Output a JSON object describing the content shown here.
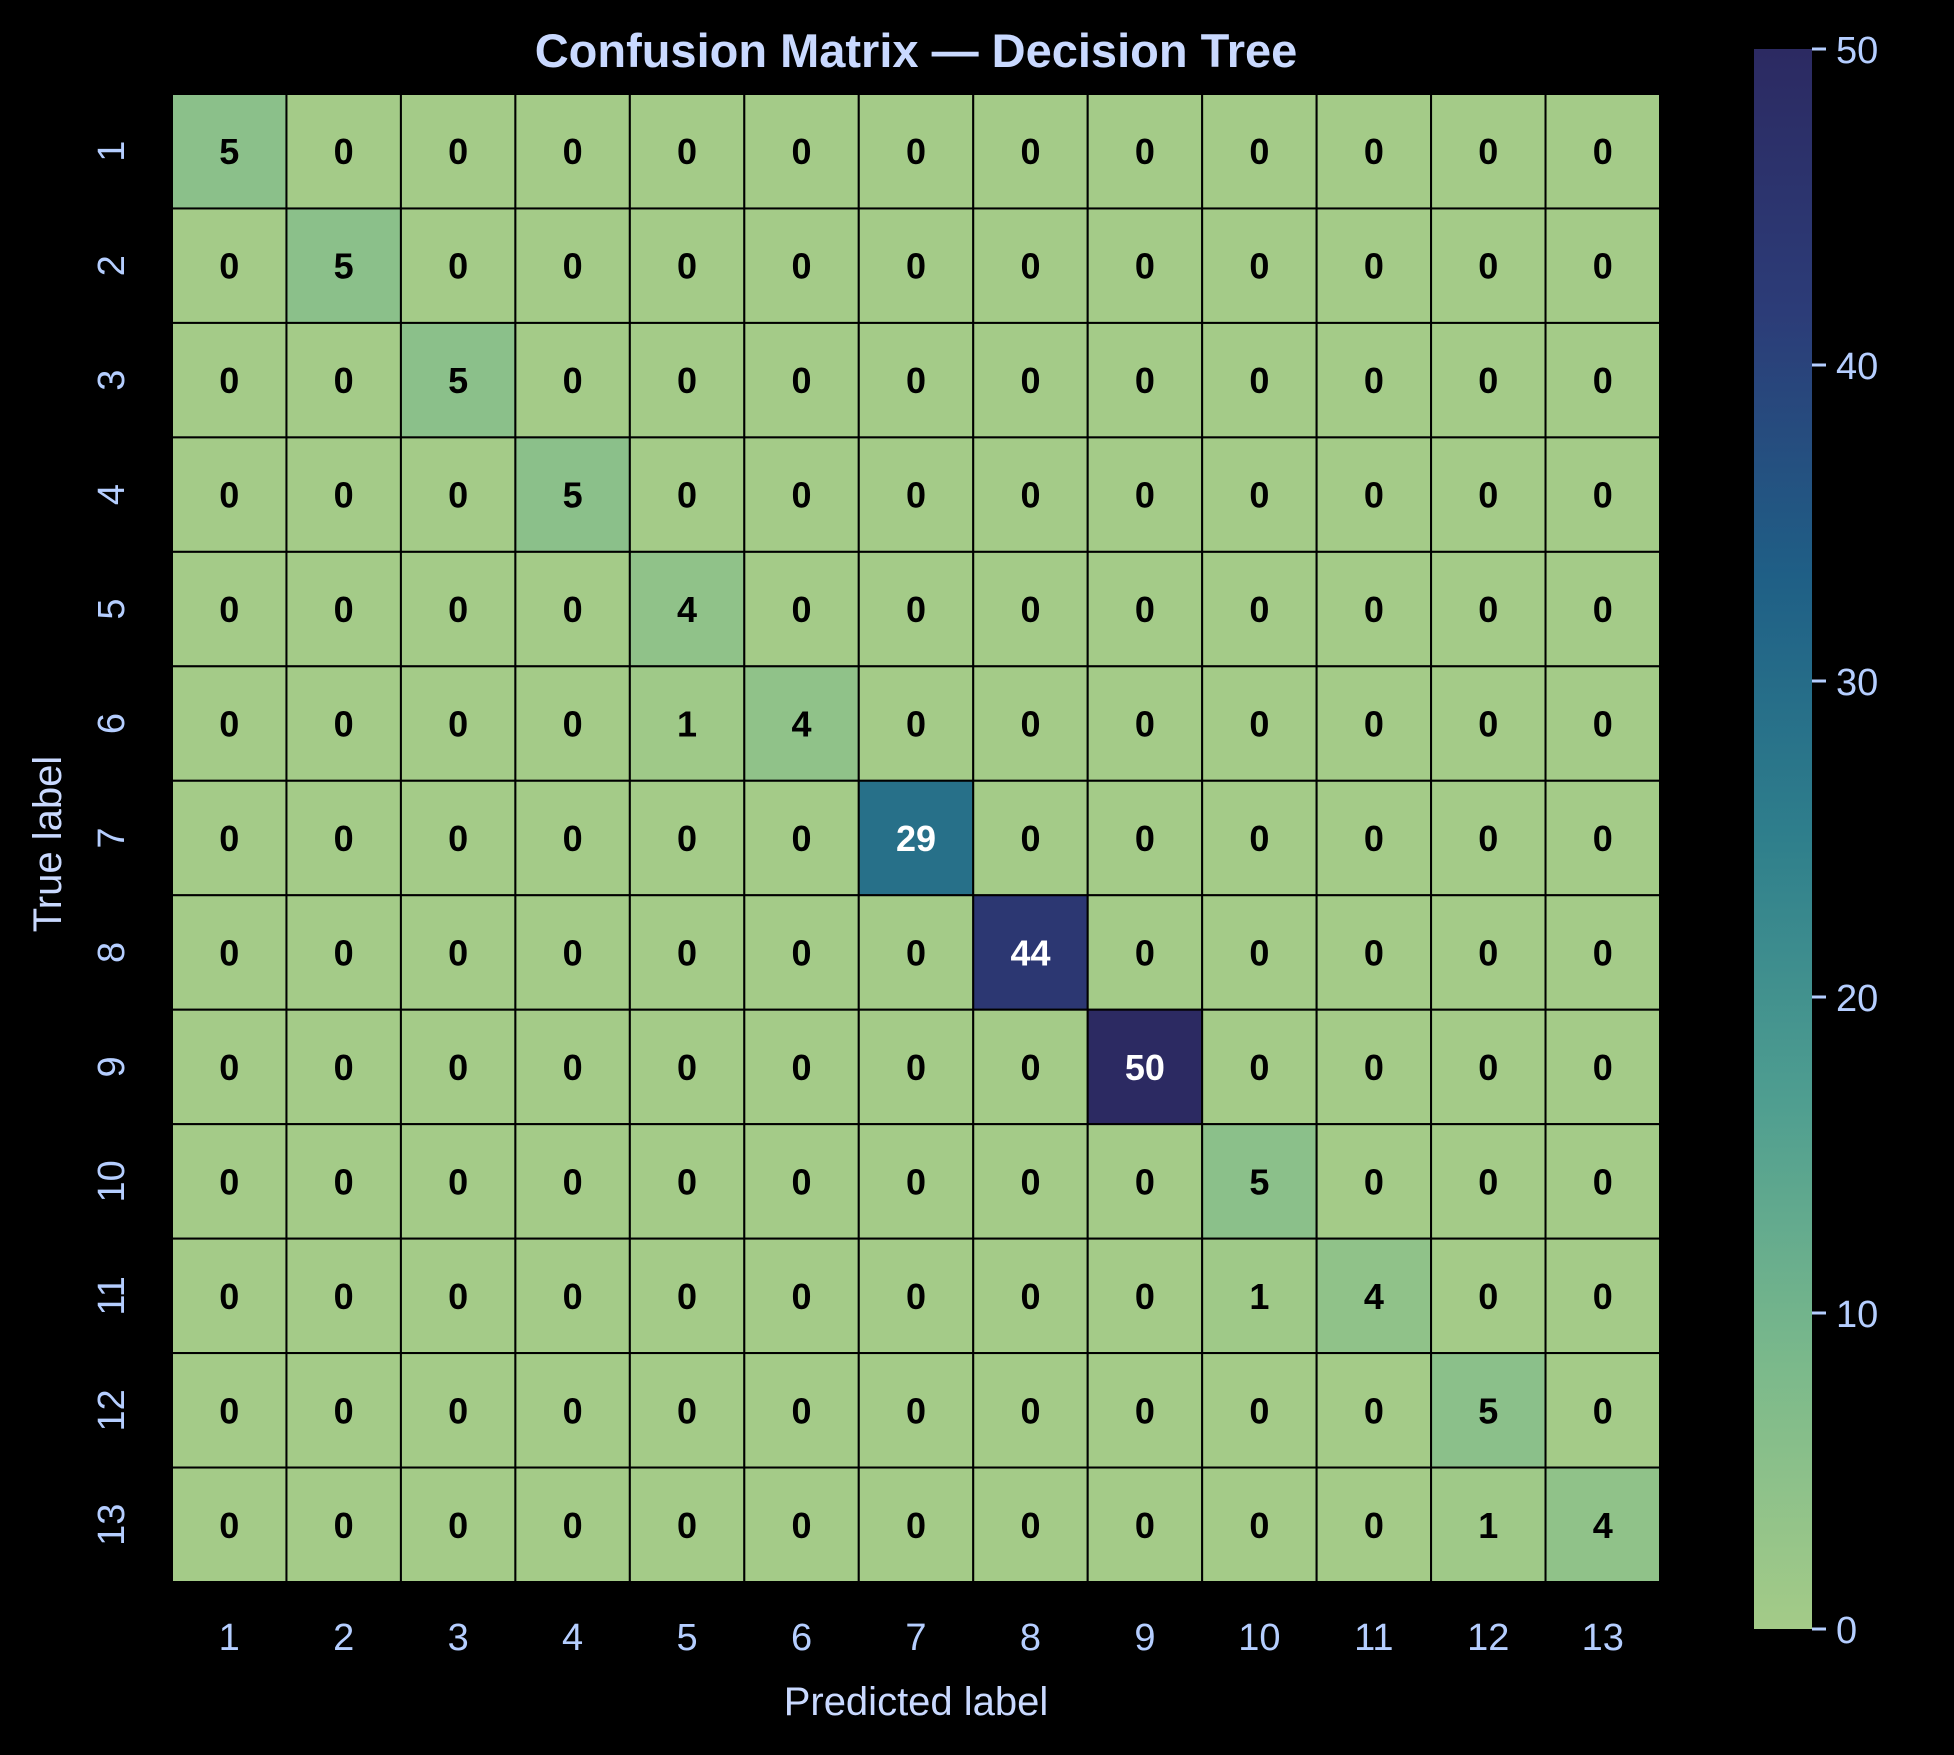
{
  "chart_data": {
    "type": "heatmap",
    "title": "Confusion Matrix — Decision Tree",
    "xlabel": "Predicted label",
    "ylabel": "True label",
    "x_categories": [
      "1",
      "2",
      "3",
      "4",
      "5",
      "6",
      "7",
      "8",
      "9",
      "10",
      "11",
      "12",
      "13"
    ],
    "y_categories": [
      "1",
      "2",
      "3",
      "4",
      "5",
      "6",
      "7",
      "8",
      "9",
      "10",
      "11",
      "12",
      "13"
    ],
    "values": [
      [
        5,
        0,
        0,
        0,
        0,
        0,
        0,
        0,
        0,
        0,
        0,
        0,
        0
      ],
      [
        0,
        5,
        0,
        0,
        0,
        0,
        0,
        0,
        0,
        0,
        0,
        0,
        0
      ],
      [
        0,
        0,
        5,
        0,
        0,
        0,
        0,
        0,
        0,
        0,
        0,
        0,
        0
      ],
      [
        0,
        0,
        0,
        5,
        0,
        0,
        0,
        0,
        0,
        0,
        0,
        0,
        0
      ],
      [
        0,
        0,
        0,
        0,
        4,
        0,
        0,
        0,
        0,
        0,
        0,
        0,
        0
      ],
      [
        0,
        0,
        0,
        0,
        1,
        4,
        0,
        0,
        0,
        0,
        0,
        0,
        0
      ],
      [
        0,
        0,
        0,
        0,
        0,
        0,
        29,
        0,
        0,
        0,
        0,
        0,
        0
      ],
      [
        0,
        0,
        0,
        0,
        0,
        0,
        0,
        44,
        0,
        0,
        0,
        0,
        0
      ],
      [
        0,
        0,
        0,
        0,
        0,
        0,
        0,
        0,
        50,
        0,
        0,
        0,
        0
      ],
      [
        0,
        0,
        0,
        0,
        0,
        0,
        0,
        0,
        0,
        5,
        0,
        0,
        0
      ],
      [
        0,
        0,
        0,
        0,
        0,
        0,
        0,
        0,
        0,
        1,
        4,
        0,
        0
      ],
      [
        0,
        0,
        0,
        0,
        0,
        0,
        0,
        0,
        0,
        0,
        0,
        5,
        0
      ],
      [
        0,
        0,
        0,
        0,
        0,
        0,
        0,
        0,
        0,
        0,
        0,
        1,
        4
      ]
    ],
    "colorbar": {
      "range": [
        0,
        50
      ],
      "ticks": [
        0,
        10,
        20,
        30,
        40,
        50
      ],
      "colormap": "crest",
      "colors": [
        "#a4cb88",
        "#7bb98b",
        "#4f9e90",
        "#2f7f8c",
        "#1f5f86",
        "#2c3c78",
        "#2c2a62"
      ]
    },
    "grid_color": "#000000",
    "background": "#000000"
  }
}
